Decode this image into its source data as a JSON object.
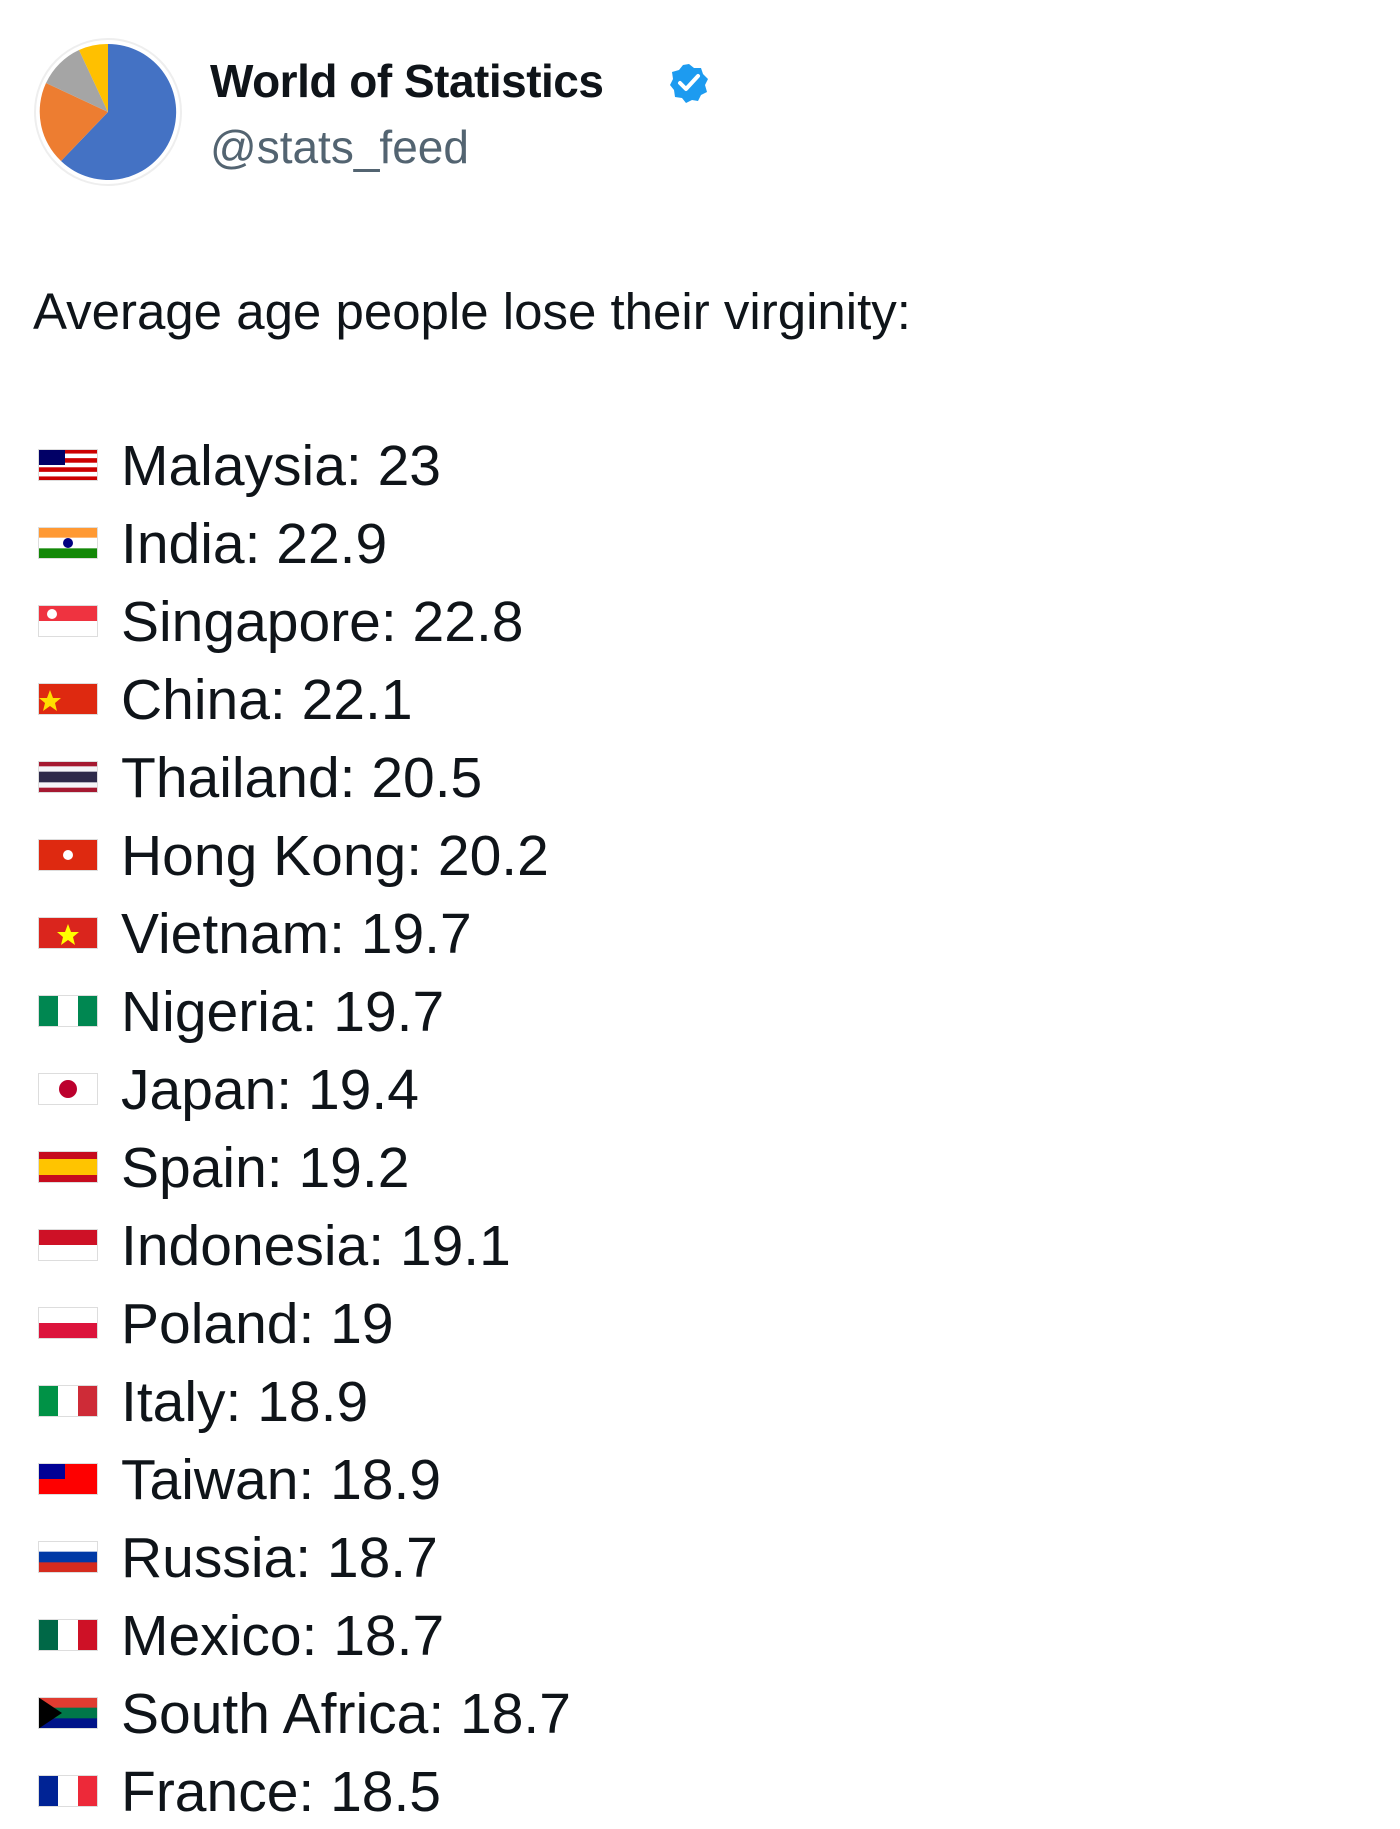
{
  "header": {
    "name": "World of Statistics",
    "handle": "@stats_feed"
  },
  "post": {
    "text": "Average age people lose their virginity:",
    "items": [
      "Malaysia: 23",
      "India: 22.9",
      "Singapore: 22.8",
      "China: 22.1",
      "Thailand: 20.5",
      "Hong Kong: 20.2",
      "Vietnam: 19.7",
      "Nigeria: 19.7",
      "Japan: 19.4",
      "Spain: 19.2",
      "Indonesia: 19.1",
      "Poland: 19",
      "Italy: 18.9",
      "Taiwan: 18.9",
      "Russia: 18.7",
      "Mexico: 18.7",
      "South Africa: 18.7",
      "France: 18.5"
    ]
  }
}
